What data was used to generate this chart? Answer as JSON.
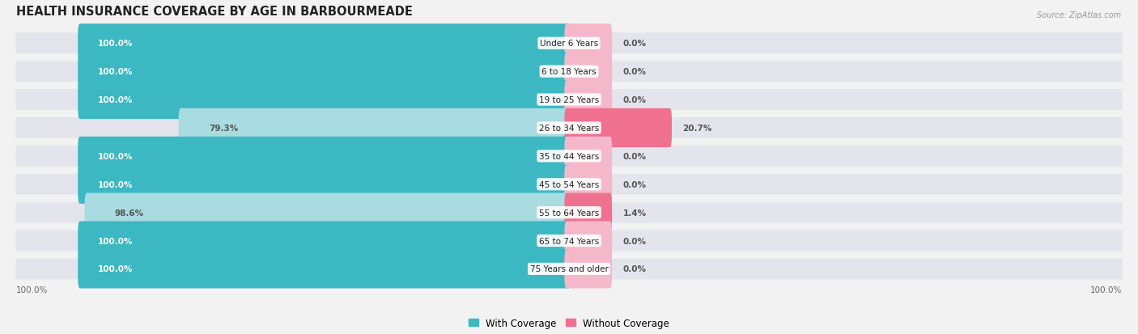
{
  "title": "HEALTH INSURANCE COVERAGE BY AGE IN BARBOURMEADE",
  "source": "Source: ZipAtlas.com",
  "categories": [
    "Under 6 Years",
    "6 to 18 Years",
    "19 to 25 Years",
    "26 to 34 Years",
    "35 to 44 Years",
    "45 to 54 Years",
    "55 to 64 Years",
    "65 to 74 Years",
    "75 Years and older"
  ],
  "with_coverage": [
    100.0,
    100.0,
    100.0,
    79.3,
    100.0,
    100.0,
    98.6,
    100.0,
    100.0
  ],
  "without_coverage": [
    0.0,
    0.0,
    0.0,
    20.7,
    0.0,
    0.0,
    1.4,
    0.0,
    0.0
  ],
  "color_with": "#3cb8c2",
  "color_without": "#f07090",
  "color_with_light": "#a8dce0",
  "color_without_light": "#f5b8cb",
  "bg_color": "#f2f2f2",
  "row_bg_color": "#e4e4ec",
  "title_fontsize": 10.5,
  "label_fontsize": 7.5,
  "legend_fontsize": 8.5,
  "axis_label_fontsize": 7.5
}
